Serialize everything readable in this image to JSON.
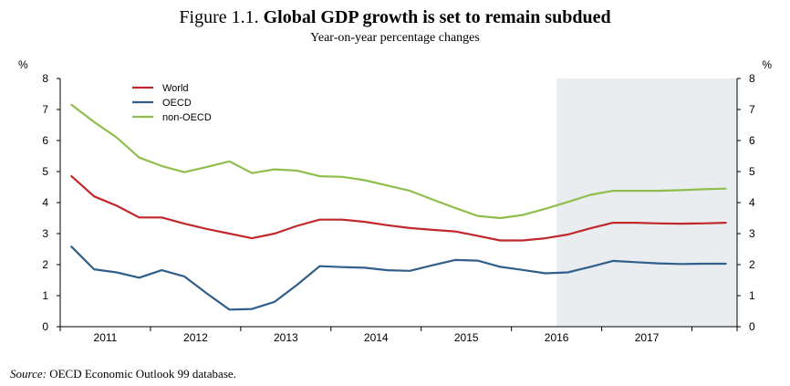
{
  "figure": {
    "number": "Figure 1.1.",
    "title": "Global GDP growth is set to remain subdued",
    "subtitle": "Year-on-year percentage changes"
  },
  "source": {
    "label": "Source:",
    "text": "OECD Economic Outlook 99 database."
  },
  "chart_data": {
    "type": "line",
    "title": "Global GDP growth is set to remain subdued",
    "subtitle": "Year-on-year percentage changes",
    "xlabel": "",
    "ylabel": "%",
    "ylabel_right": "%",
    "ylim": [
      0,
      8
    ],
    "yticks": [
      0,
      1,
      2,
      3,
      4,
      5,
      6,
      7,
      8
    ],
    "x_range": [
      2010.5,
      2018.0
    ],
    "x_tick_labels": [
      "2011",
      "2012",
      "2013",
      "2014",
      "2015",
      "2016",
      "2017"
    ],
    "x_tick_positions": [
      2011,
      2012,
      2013,
      2014,
      2015,
      2016,
      2017
    ],
    "x_boundaries": [
      2010.5,
      2011.5,
      2012.5,
      2013.5,
      2014.5,
      2015.5,
      2016.5,
      2017.5,
      2018.0
    ],
    "projection_shading": {
      "from": 2016.0,
      "to": 2018.0,
      "color": "#e9edf0"
    },
    "legend": {
      "position": "top-left",
      "entries": [
        "World",
        "OECD",
        "non-OECD"
      ]
    },
    "x": [
      2010.625,
      2010.875,
      2011.125,
      2011.375,
      2011.625,
      2011.875,
      2012.125,
      2012.375,
      2012.625,
      2012.875,
      2013.125,
      2013.375,
      2013.625,
      2013.875,
      2014.125,
      2014.375,
      2014.625,
      2014.875,
      2015.125,
      2015.375,
      2015.625,
      2015.875,
      2016.125,
      2016.375,
      2016.625,
      2016.875,
      2017.125,
      2017.375,
      2017.625,
      2017.875
    ],
    "series": [
      {
        "name": "World",
        "color": "#c0282c",
        "values": [
          4.85,
          4.2,
          3.9,
          3.52,
          3.52,
          3.32,
          3.15,
          3.0,
          2.85,
          3.0,
          3.25,
          3.45,
          3.45,
          3.38,
          3.27,
          3.18,
          3.12,
          3.07,
          2.93,
          2.78,
          2.78,
          2.85,
          2.97,
          3.17,
          3.35,
          3.35,
          3.33,
          3.32,
          3.33,
          3.35
        ]
      },
      {
        "name": "OECD",
        "color": "#2f5f8a",
        "values": [
          2.58,
          1.85,
          1.75,
          1.58,
          1.82,
          1.62,
          1.07,
          0.55,
          0.57,
          0.8,
          1.35,
          1.95,
          1.92,
          1.9,
          1.82,
          1.8,
          1.98,
          2.15,
          2.13,
          1.93,
          1.83,
          1.72,
          1.75,
          1.93,
          2.12,
          2.08,
          2.04,
          2.02,
          2.03,
          2.03
        ]
      },
      {
        "name": "non-OECD",
        "color": "#8fbe4c",
        "values": [
          7.15,
          6.6,
          6.1,
          5.45,
          5.18,
          4.98,
          5.15,
          5.33,
          4.95,
          5.07,
          5.03,
          4.85,
          4.83,
          4.72,
          4.55,
          4.38,
          4.1,
          3.83,
          3.57,
          3.5,
          3.6,
          3.8,
          4.02,
          4.25,
          4.38,
          4.38,
          4.38,
          4.4,
          4.43,
          4.45
        ]
      }
    ]
  }
}
